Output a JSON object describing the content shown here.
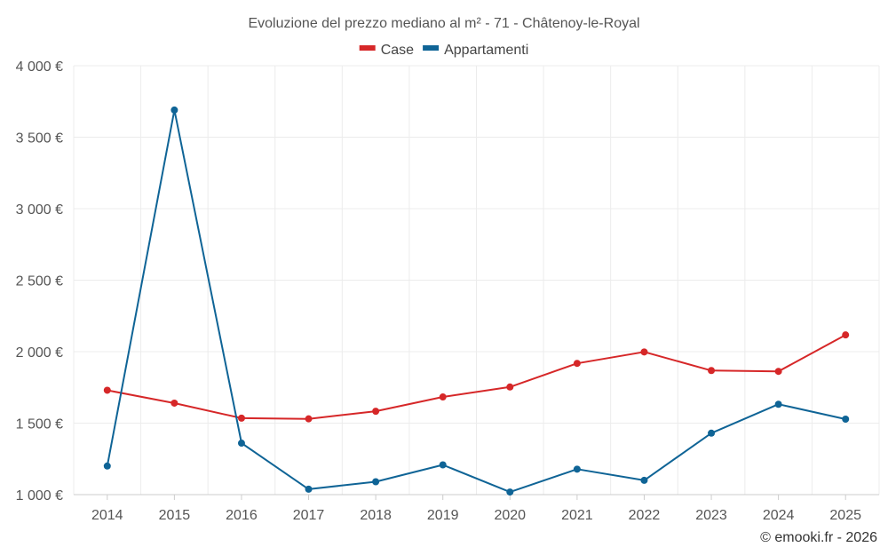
{
  "chart_data": {
    "type": "line",
    "title": "Evoluzione del prezzo mediano al m² - 71 - Châtenoy-le-Royal",
    "xlabel": "",
    "ylabel": "",
    "categories": [
      "2014",
      "2015",
      "2016",
      "2017",
      "2018",
      "2019",
      "2020",
      "2021",
      "2022",
      "2023",
      "2024",
      "2025"
    ],
    "ylim": [
      1000,
      4000
    ],
    "yticks": [
      1000,
      1500,
      2000,
      2500,
      3000,
      3500,
      4000
    ],
    "ytick_labels": [
      "1 000 €",
      "1 500 €",
      "2 000 €",
      "2 500 €",
      "3 000 €",
      "3 500 €",
      "4 000 €"
    ],
    "grid": true,
    "legend_position": "top-center",
    "series": [
      {
        "name": "Case",
        "color": "#d62728",
        "values": [
          1730,
          1640,
          1535,
          1530,
          1583,
          1683,
          1753,
          1918,
          1998,
          1868,
          1862,
          2117
        ]
      },
      {
        "name": "Appartamenti",
        "color": "#0f6496",
        "values": [
          1200,
          3690,
          1360,
          1038,
          1090,
          1208,
          1018,
          1178,
          1100,
          1430,
          1632,
          1528
        ]
      }
    ]
  },
  "credit": "© emooki.fr - 2026"
}
